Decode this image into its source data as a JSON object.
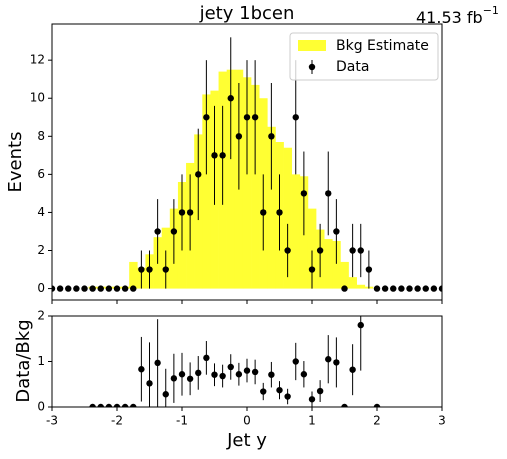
{
  "chart_data": {
    "type": "hist_ratio",
    "title": "jety  1bcen",
    "lumi": "41.53 fb",
    "lumi_exponent": "−1",
    "xlabel": "Jet y",
    "ylabel": "Events",
    "xlim": [
      -3,
      3
    ],
    "xticks": [
      -3,
      -2,
      -1,
      0,
      1,
      2,
      3
    ],
    "ylim": [
      -0.6,
      13.9
    ],
    "yticks": [
      0,
      2,
      4,
      6,
      8,
      10,
      12
    ],
    "legend": "upper right",
    "x": [
      -3,
      -2.875,
      -2.75,
      -2.625,
      -2.5,
      -2.375,
      -2.25,
      -2.125,
      -2,
      -1.875,
      -1.75,
      -1.625,
      -1.5,
      -1.375,
      -1.25,
      -1.125,
      -1,
      -0.875,
      -0.75,
      -0.625,
      -0.5,
      -0.375,
      -0.25,
      -0.125,
      0,
      0.125,
      0.25,
      0.375,
      0.5,
      0.625,
      0.75,
      0.875,
      1,
      1.125,
      1.25,
      1.375,
      1.5,
      1.625,
      1.75,
      1.875,
      2,
      2.125,
      2.25,
      2.375,
      2.5,
      2.625,
      2.75,
      2.875,
      3
    ],
    "series": [
      {
        "name": "Bkg Estimate",
        "color": "#ffff33",
        "values": [
          0,
          0,
          0,
          0,
          0,
          0.1,
          0.1,
          0.1,
          0.1,
          0.1,
          1.4,
          1.1,
          1.8,
          2.7,
          3.2,
          4.2,
          5.6,
          6.6,
          8.1,
          10.2,
          10.4,
          11.4,
          11.5,
          11.5,
          11.1,
          10.7,
          10.0,
          8.5,
          7.7,
          7.4,
          6.0,
          5.9,
          4.2,
          3.1,
          2.6,
          2.5,
          1.4,
          0.6,
          0.2,
          0.1,
          0,
          0,
          0,
          0,
          0,
          0,
          0,
          0,
          0
        ]
      },
      {
        "name": "Data",
        "color": "#000000",
        "values": [
          0,
          0,
          0,
          0,
          0,
          0,
          0,
          0,
          0,
          0,
          0,
          1,
          1,
          3,
          1,
          3,
          4,
          4,
          6,
          9,
          7,
          7,
          10,
          8,
          9,
          9,
          4,
          8,
          4,
          2,
          9,
          5,
          1,
          2,
          5,
          3,
          0,
          2,
          2,
          1,
          0,
          0,
          0,
          0,
          0,
          0,
          0,
          0,
          0
        ],
        "errors": [
          0,
          0,
          0,
          0,
          0,
          0,
          0,
          0,
          0,
          0,
          0,
          1,
          1,
          1.7,
          1,
          1.7,
          2,
          2,
          2.4,
          3,
          2.6,
          2.6,
          3.2,
          2.8,
          3,
          3,
          2,
          2.8,
          2,
          1.4,
          3,
          2.2,
          1,
          1.4,
          2.2,
          1.7,
          0,
          1.4,
          1.4,
          1,
          0,
          0,
          0,
          0,
          0,
          0,
          0,
          0,
          0
        ]
      }
    ],
    "ratio": {
      "ylabel": "Data/Bkg",
      "ylim": [
        0,
        2
      ],
      "yticks": [
        0,
        1,
        2
      ],
      "values": [
        null,
        null,
        null,
        null,
        null,
        0,
        0,
        0,
        0,
        0,
        0,
        0.83,
        0.52,
        0.97,
        0.28,
        0.63,
        0.72,
        0.62,
        0.75,
        1.08,
        0.71,
        0.68,
        0.88,
        0.72,
        0.8,
        0.77,
        0.34,
        0.71,
        0.37,
        0.23,
        1.0,
        0.72,
        0.17,
        0.35,
        1.05,
        0.98,
        0,
        0.82,
        1.8,
        null,
        0,
        null,
        null,
        null,
        null,
        null,
        null,
        null,
        null
      ],
      "errors": [
        null,
        null,
        null,
        null,
        null,
        0,
        0,
        0,
        0,
        0,
        0,
        0.71,
        0.9,
        0.96,
        0.56,
        0.54,
        0.47,
        0.36,
        0.37,
        0.37,
        0.25,
        0.25,
        0.28,
        0.25,
        0.26,
        0.27,
        0.19,
        0.28,
        0.2,
        0.17,
        0.41,
        0.29,
        0.17,
        0.24,
        0.53,
        0.55,
        0,
        0.56,
        1.0,
        null,
        0,
        null,
        null,
        null,
        null,
        null,
        null,
        null,
        null
      ]
    }
  }
}
